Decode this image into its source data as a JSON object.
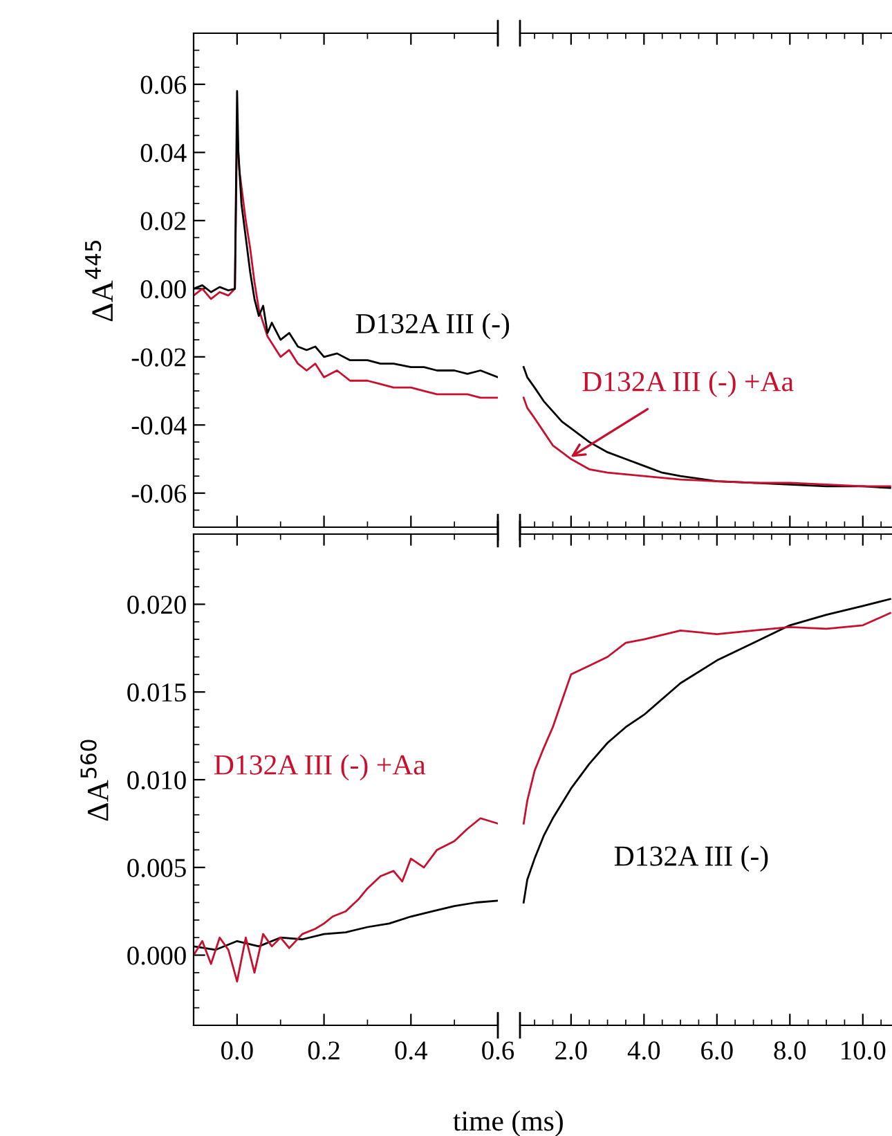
{
  "chart_data": [
    {
      "type": "line",
      "ylabel": "ΔA$^{445}$",
      "xlim": [
        -0.1,
        0.6
      ],
      "ylim": [
        -0.07,
        0.075
      ],
      "xticks": [
        {
          "value": 0.0,
          "label": null
        },
        {
          "value": 0.2,
          "label": null
        },
        {
          "value": 0.4,
          "label": null
        },
        {
          "value": 0.6,
          "label": null
        }
      ],
      "yticks": [
        {
          "value": -0.06,
          "label": "-0.06"
        },
        {
          "value": -0.04,
          "label": "-0.04"
        },
        {
          "value": -0.02,
          "label": "-0.02"
        },
        {
          "value": 0.0,
          "label": "0.00"
        },
        {
          "value": 0.02,
          "label": "0.02"
        },
        {
          "value": 0.04,
          "label": "0.04"
        },
        {
          "value": 0.06,
          "label": "0.06"
        }
      ],
      "tick_labels": "y",
      "series": [
        {
          "color": "#c8102e",
          "x": [
            -0.1,
            -0.08,
            -0.06,
            -0.04,
            -0.02,
            -0.005,
            0.0,
            0.005,
            0.01,
            0.02,
            0.03,
            0.04,
            0.05,
            0.06,
            0.07,
            0.08,
            0.1,
            0.12,
            0.14,
            0.16,
            0.18,
            0.2,
            0.23,
            0.26,
            0.3,
            0.33,
            0.36,
            0.4,
            0.43,
            0.46,
            0.5,
            0.53,
            0.56,
            0.6
          ],
          "values": [
            -0.002,
            0.0,
            -0.003,
            -0.001,
            -0.002,
            0.0,
            0.047,
            0.035,
            0.03,
            0.02,
            0.012,
            0.002,
            -0.006,
            -0.01,
            -0.014,
            -0.016,
            -0.02,
            -0.018,
            -0.022,
            -0.024,
            -0.022,
            -0.026,
            -0.024,
            -0.027,
            -0.027,
            -0.028,
            -0.029,
            -0.029,
            -0.03,
            -0.031,
            -0.031,
            -0.031,
            -0.032,
            -0.032
          ]
        },
        {
          "name": "D132A III (-)",
          "color": "#000000",
          "x": [
            -0.1,
            -0.08,
            -0.06,
            -0.04,
            -0.02,
            -0.005,
            0.0,
            0.003,
            0.01,
            0.02,
            0.03,
            0.04,
            0.05,
            0.06,
            0.07,
            0.08,
            0.1,
            0.12,
            0.14,
            0.16,
            0.18,
            0.2,
            0.23,
            0.26,
            0.3,
            0.33,
            0.36,
            0.4,
            0.43,
            0.46,
            0.5,
            0.53,
            0.56,
            0.6
          ],
          "values": [
            0.0,
            0.001,
            -0.001,
            0.0005,
            -0.0005,
            0.0,
            0.058,
            0.04,
            0.025,
            0.015,
            0.005,
            -0.003,
            -0.008,
            -0.005,
            -0.013,
            -0.01,
            -0.015,
            -0.013,
            -0.017,
            -0.018,
            -0.017,
            -0.02,
            -0.019,
            -0.021,
            -0.021,
            -0.022,
            -0.022,
            -0.023,
            -0.023,
            -0.024,
            -0.024,
            -0.025,
            -0.024,
            -0.026
          ]
        }
      ]
    },
    {
      "type": "line",
      "xlim": [
        0.6,
        10.8
      ],
      "ylim": [
        -0.07,
        0.075
      ],
      "xticks": [
        {
          "value": 2.0,
          "label": null
        },
        {
          "value": 4.0,
          "label": null
        },
        {
          "value": 6.0,
          "label": null
        },
        {
          "value": 8.0,
          "label": null
        },
        {
          "value": 10.0,
          "label": null
        }
      ],
      "tick_labels": false,
      "series": [
        {
          "color": "#000000",
          "x": [
            0.7,
            0.8,
            1.0,
            1.25,
            1.5,
            1.75,
            2.0,
            2.5,
            3.0,
            3.5,
            4.0,
            4.5,
            5.0,
            6.0,
            7.0,
            8.0,
            9.0,
            10.0,
            10.75
          ],
          "values": [
            -0.023,
            -0.026,
            -0.029,
            -0.033,
            -0.036,
            -0.039,
            -0.041,
            -0.045,
            -0.048,
            -0.05,
            -0.052,
            -0.054,
            -0.055,
            -0.0565,
            -0.057,
            -0.0575,
            -0.058,
            -0.058,
            -0.0585
          ]
        },
        {
          "name": "D132A III (-) +Aa",
          "color": "#c8102e",
          "x": [
            0.7,
            0.8,
            1.0,
            1.25,
            1.5,
            1.75,
            2.0,
            2.5,
            3.0,
            3.5,
            4.0,
            4.5,
            5.0,
            6.0,
            7.0,
            8.0,
            9.0,
            10.0,
            10.75
          ],
          "values": [
            -0.032,
            -0.035,
            -0.038,
            -0.042,
            -0.046,
            -0.048,
            -0.05,
            -0.053,
            -0.054,
            -0.0545,
            -0.055,
            -0.0555,
            -0.056,
            -0.0565,
            -0.057,
            -0.057,
            -0.0575,
            -0.058,
            -0.058
          ]
        }
      ]
    },
    {
      "type": "line",
      "ylabel": "ΔA$^{560}$",
      "xlabel": "time (ms)",
      "xlim": [
        -0.1,
        0.6
      ],
      "ylim": [
        -0.004,
        0.024
      ],
      "xticks": [
        {
          "value": 0.0,
          "label": "0.0"
        },
        {
          "value": 0.2,
          "label": "0.2"
        },
        {
          "value": 0.4,
          "label": "0.4"
        },
        {
          "value": 0.6,
          "label": "0.6"
        }
      ],
      "yticks": [
        {
          "value": 0.0,
          "label": "0.000"
        },
        {
          "value": 0.005,
          "label": "0.005"
        },
        {
          "value": 0.01,
          "label": "0.010"
        },
        {
          "value": 0.015,
          "label": "0.015"
        },
        {
          "value": 0.02,
          "label": "0.020"
        }
      ],
      "series": [
        {
          "color": "#000000",
          "x": [
            -0.1,
            -0.05,
            0.0,
            0.05,
            0.1,
            0.15,
            0.2,
            0.25,
            0.3,
            0.35,
            0.4,
            0.45,
            0.5,
            0.55,
            0.6
          ],
          "values": [
            0.0005,
            0.0003,
            0.0008,
            0.0005,
            0.001,
            0.0009,
            0.0012,
            0.0013,
            0.0016,
            0.0018,
            0.0022,
            0.0025,
            0.0028,
            0.003,
            0.0031
          ]
        },
        {
          "name": "D132A III (-) +Aa",
          "color": "#c8102e",
          "x": [
            -0.1,
            -0.08,
            -0.06,
            -0.04,
            -0.02,
            0.0,
            0.02,
            0.04,
            0.06,
            0.08,
            0.1,
            0.12,
            0.15,
            0.18,
            0.2,
            0.22,
            0.25,
            0.28,
            0.3,
            0.33,
            0.36,
            0.38,
            0.4,
            0.43,
            0.46,
            0.5,
            0.53,
            0.56,
            0.6
          ],
          "values": [
            0.0,
            0.0008,
            -0.0005,
            0.001,
            0.0003,
            -0.0015,
            0.001,
            -0.001,
            0.0012,
            0.0005,
            0.001,
            0.0004,
            0.0012,
            0.0015,
            0.0018,
            0.0022,
            0.0025,
            0.0032,
            0.0038,
            0.0045,
            0.0048,
            0.0042,
            0.0055,
            0.005,
            0.006,
            0.0065,
            0.0072,
            0.0078,
            0.0075
          ]
        }
      ]
    },
    {
      "type": "line",
      "xlim": [
        0.6,
        10.8
      ],
      "ylim": [
        -0.004,
        0.024
      ],
      "xticks": [
        {
          "value": 2.0,
          "label": "2.0"
        },
        {
          "value": 4.0,
          "label": "4.0"
        },
        {
          "value": 6.0,
          "label": "6.0"
        },
        {
          "value": 8.0,
          "label": "8.0"
        },
        {
          "value": 10.0,
          "label": "10.0"
        }
      ],
      "tick_labels": "x",
      "series": [
        {
          "name": "D132A III (-)",
          "color": "#000000",
          "x": [
            0.7,
            0.8,
            1.0,
            1.25,
            1.5,
            2.0,
            2.5,
            3.0,
            3.5,
            4.0,
            5.0,
            6.0,
            7.0,
            8.0,
            9.0,
            10.0,
            10.75
          ],
          "values": [
            0.003,
            0.0043,
            0.0055,
            0.0068,
            0.0078,
            0.0095,
            0.0109,
            0.0121,
            0.013,
            0.0137,
            0.0155,
            0.0168,
            0.0178,
            0.0188,
            0.0194,
            0.0199,
            0.0203
          ]
        },
        {
          "color": "#c8102e",
          "x": [
            0.7,
            0.8,
            1.0,
            1.25,
            1.5,
            2.0,
            2.5,
            3.0,
            3.5,
            4.0,
            5.0,
            6.0,
            7.0,
            8.0,
            9.0,
            10.0,
            10.75
          ],
          "values": [
            0.0075,
            0.0088,
            0.0105,
            0.0118,
            0.013,
            0.016,
            0.0165,
            0.017,
            0.0178,
            0.018,
            0.0185,
            0.0183,
            0.0185,
            0.0187,
            0.0186,
            0.0188,
            0.0195
          ]
        }
      ]
    }
  ]
}
